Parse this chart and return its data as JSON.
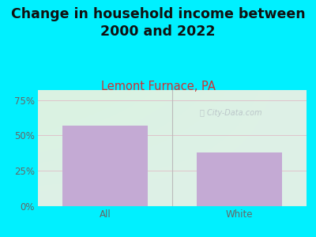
{
  "title": "Change in household income between\n2000 and 2022",
  "subtitle": "Lemont Furnace, PA",
  "categories": [
    "All",
    "White"
  ],
  "values": [
    57,
    38
  ],
  "bar_color": "#c4aad4",
  "background_outer": "#00f0ff",
  "background_plot": "#e8f5ee",
  "yticks": [
    0,
    25,
    50,
    75
  ],
  "ylim": [
    0,
    82
  ],
  "title_fontsize": 12.5,
  "subtitle_fontsize": 10.5,
  "tick_fontsize": 8.5,
  "watermark": "ⓘ City-Data.com",
  "grid_color": "#e0c8d0",
  "subtitle_color": "#cc3333",
  "tick_color": "#666666"
}
